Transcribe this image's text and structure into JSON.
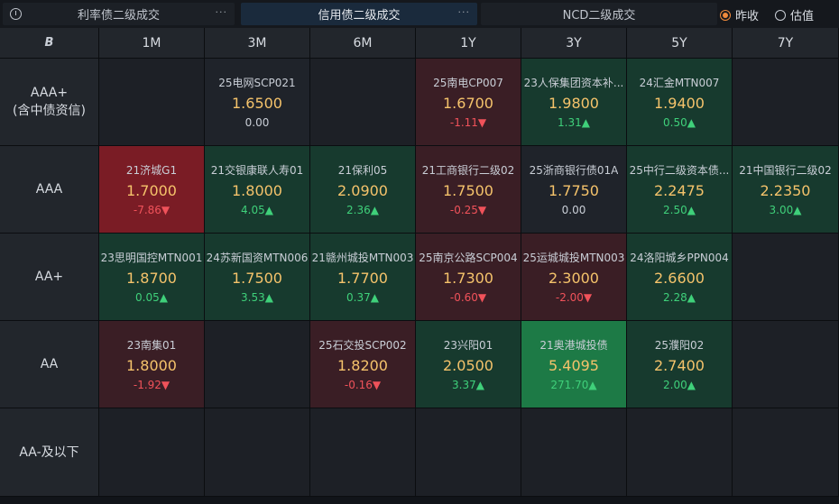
{
  "tabs": [
    {
      "label": "利率债二级成交",
      "dots": "···"
    },
    {
      "label": "信用债二级成交",
      "dots": "···"
    },
    {
      "label": "NCD二级成交"
    }
  ],
  "radios": [
    {
      "label": "昨收",
      "selected": true
    },
    {
      "label": "估值",
      "selected": false
    }
  ],
  "logo": "B",
  "columns": [
    "1M",
    "3M",
    "6M",
    "1Y",
    "3Y",
    "5Y",
    "7Y"
  ],
  "rows": [
    {
      "label": "AAA+\n(含中债资信)",
      "cells": [
        null,
        {
          "name": "25电网SCP021",
          "yield": "1.6500",
          "change": "0.00",
          "dir": "flat",
          "tone": "neutral"
        },
        null,
        {
          "name": "25南电CP007",
          "yield": "1.6700",
          "change": "-1.11▼",
          "dir": "down",
          "tone": "red"
        },
        {
          "name": "23人保集团资本补...",
          "yield": "1.9800",
          "change": "1.31▲",
          "dir": "up",
          "tone": "green"
        },
        {
          "name": "24汇金MTN007",
          "yield": "1.9400",
          "change": "0.50▲",
          "dir": "up",
          "tone": "green"
        },
        null
      ]
    },
    {
      "label": "AAA",
      "cells": [
        {
          "name": "21济城G1",
          "yield": "1.7000",
          "change": "-7.86▼",
          "dir": "down",
          "tone": "red-strong"
        },
        {
          "name": "21交银康联人寿01",
          "yield": "1.8000",
          "change": "4.05▲",
          "dir": "up",
          "tone": "green"
        },
        {
          "name": "21保利05",
          "yield": "2.0900",
          "change": "2.36▲",
          "dir": "up",
          "tone": "green"
        },
        {
          "name": "21工商银行二级02",
          "yield": "1.7500",
          "change": "-0.25▼",
          "dir": "down",
          "tone": "red"
        },
        {
          "name": "25浙商银行债01A",
          "yield": "1.7750",
          "change": "0.00",
          "dir": "flat",
          "tone": "neutral"
        },
        {
          "name": "25中行二级资本债...",
          "yield": "2.2475",
          "change": "2.50▲",
          "dir": "up",
          "tone": "green"
        },
        {
          "name": "21中国银行二级02",
          "yield": "2.2350",
          "change": "3.00▲",
          "dir": "up",
          "tone": "green"
        }
      ]
    },
    {
      "label": "AA+",
      "cells": [
        {
          "name": "23思明国控MTN001",
          "yield": "1.8700",
          "change": "0.05▲",
          "dir": "up",
          "tone": "green"
        },
        {
          "name": "24苏新国资MTN006",
          "yield": "1.7500",
          "change": "3.53▲",
          "dir": "up",
          "tone": "green"
        },
        {
          "name": "21赣州城投MTN003",
          "yield": "1.7700",
          "change": "0.37▲",
          "dir": "up",
          "tone": "green"
        },
        {
          "name": "25南京公路SCP004",
          "yield": "1.7300",
          "change": "-0.60▼",
          "dir": "down",
          "tone": "red"
        },
        {
          "name": "25运城城投MTN003",
          "yield": "2.3000",
          "change": "-2.00▼",
          "dir": "down",
          "tone": "red"
        },
        {
          "name": "24洛阳城乡PPN004",
          "yield": "2.6600",
          "change": "2.28▲",
          "dir": "up",
          "tone": "green"
        },
        null
      ]
    },
    {
      "label": "AA",
      "cells": [
        {
          "name": "23南集01",
          "yield": "1.8000",
          "change": "-1.92▼",
          "dir": "down",
          "tone": "red"
        },
        null,
        {
          "name": "25石交投SCP002",
          "yield": "1.8200",
          "change": "-0.16▼",
          "dir": "down",
          "tone": "red"
        },
        {
          "name": "23兴阳01",
          "yield": "2.0500",
          "change": "3.37▲",
          "dir": "up",
          "tone": "green"
        },
        {
          "name": "21奥港城投债",
          "yield": "5.4095",
          "change": "271.70▲",
          "dir": "up",
          "tone": "green-strong"
        },
        {
          "name": "25濮阳02",
          "yield": "2.7400",
          "change": "2.00▲",
          "dir": "up",
          "tone": "green"
        },
        null
      ]
    },
    {
      "label": "AA-及以下",
      "cells": [
        null,
        null,
        null,
        null,
        null,
        null,
        null
      ]
    }
  ]
}
